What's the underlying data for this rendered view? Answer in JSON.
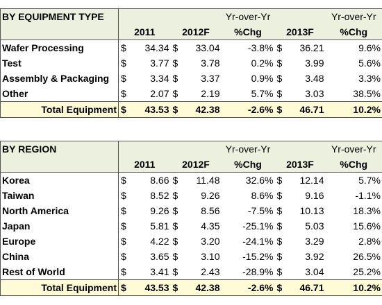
{
  "tables": [
    {
      "title": "BY EQUIPMENT TYPE",
      "currency": "$",
      "group_headers": [
        "Yr-over-Yr",
        "Yr-over-Yr"
      ],
      "columns": [
        "2011",
        "2012F",
        "%Chg",
        "2013F",
        "%Chg"
      ],
      "rows": [
        [
          "Wafer Processing",
          "34.34",
          "33.04",
          "-3.8%",
          "36.21",
          "9.6%"
        ],
        [
          "Test",
          "3.77",
          "3.78",
          "0.2%",
          "3.99",
          "5.6%"
        ],
        [
          "Assembly & Packaging",
          "3.34",
          "3.37",
          "0.9%",
          "3.48",
          "3.3%"
        ],
        [
          "Other",
          "2.07",
          "2.19",
          "5.7%",
          "3.03",
          "38.5%"
        ]
      ],
      "total": [
        "Total Equipment",
        "43.53",
        "42.38",
        "-2.6%",
        "46.71",
        "10.2%"
      ]
    },
    {
      "title": "BY REGION",
      "currency": "$",
      "group_headers": [
        "Yr-over-Yr",
        "Yr-over-Yr"
      ],
      "columns": [
        "2011",
        "2012F",
        "%Chg",
        "2013F",
        "%Chg"
      ],
      "rows": [
        [
          "Korea",
          "8.66",
          "11.48",
          "32.6%",
          "12.14",
          "5.7%"
        ],
        [
          "Taiwan",
          "8.52",
          "9.26",
          "8.6%",
          "9.16",
          "-1.1%"
        ],
        [
          "North America",
          "9.26",
          "8.56",
          "-7.5%",
          "10.13",
          "18.3%"
        ],
        [
          "Japan",
          "5.81",
          "4.35",
          "-25.1%",
          "5.03",
          "15.6%"
        ],
        [
          "Europe",
          "4.22",
          "3.20",
          "-24.1%",
          "3.29",
          "2.8%"
        ],
        [
          "China",
          "3.65",
          "3.10",
          "-15.2%",
          "3.92",
          "26.5%"
        ],
        [
          "Rest of World",
          "3.41",
          "2.43",
          "-28.9%",
          "3.04",
          "25.2%"
        ]
      ],
      "total": [
        "Total Equipment",
        "43.53",
        "42.38",
        "-2.6%",
        "46.71",
        "10.2%"
      ]
    }
  ]
}
